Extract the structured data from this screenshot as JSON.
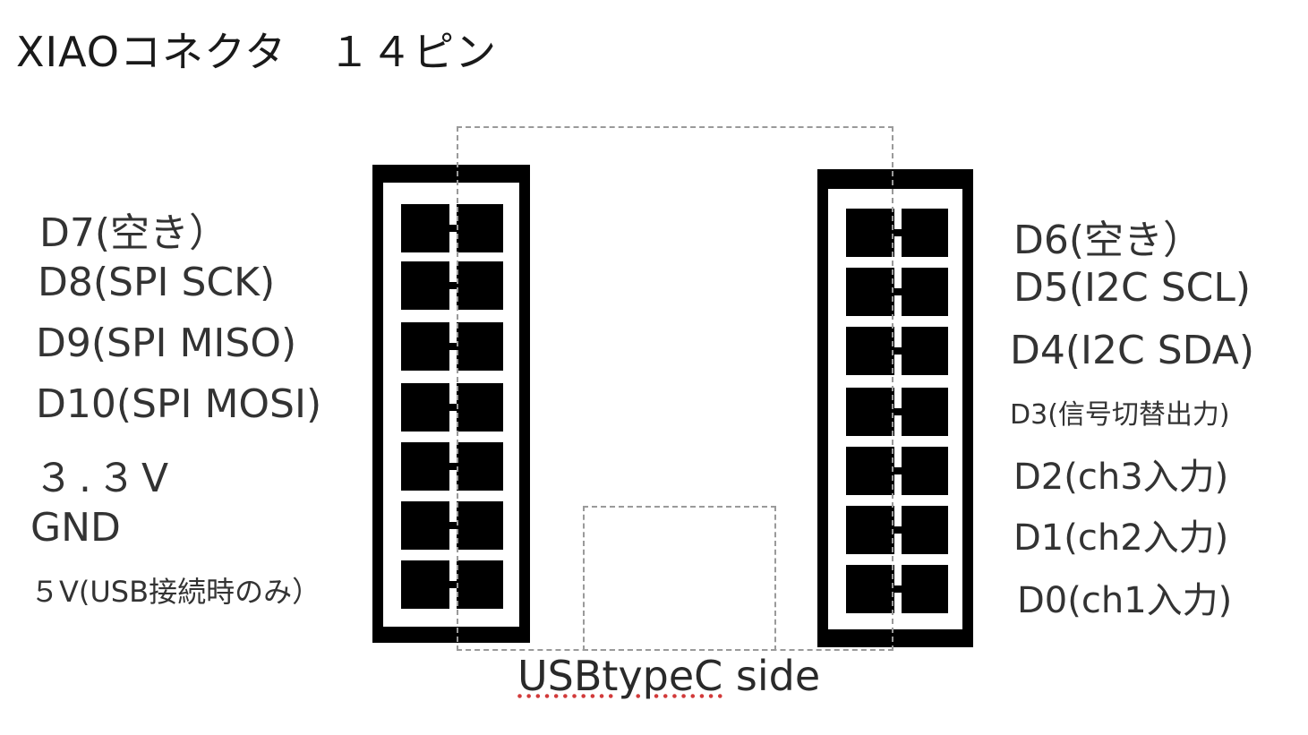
{
  "title": "XIAOコネクタ　１４ピン",
  "left_pins": [
    "D7(空き）",
    "D8(SPI SCK)",
    "D9(SPI MISO)",
    "D10(SPI MOSI)",
    "３.３V",
    "GND",
    "５V(USB接続時のみ）"
  ],
  "right_pins": [
    "D6(空き）",
    "D5(I2C SCL)",
    "D4(I2C SDA)",
    "D3(信号切替出力)",
    "D2(ch3入力)",
    "D1(ch2入力)",
    "D0(ch1入力)"
  ],
  "usb": {
    "word": "USBtypeC",
    "suffix": " side"
  },
  "colors": {
    "connector": "#000000",
    "outline": "#9a9a9a",
    "spellcheck": "#d23a3a"
  }
}
